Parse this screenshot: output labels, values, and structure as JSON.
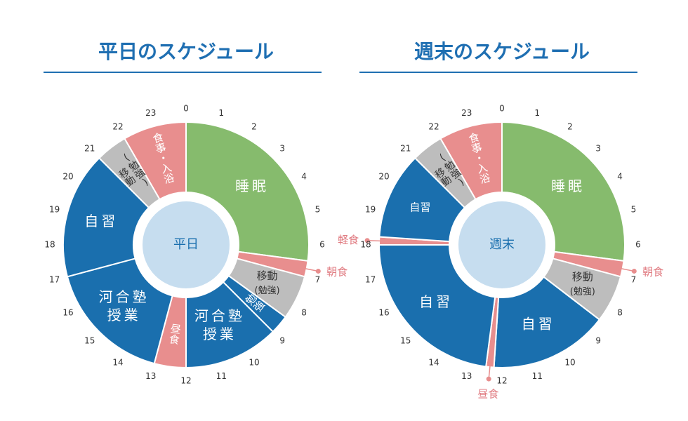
{
  "chart_data": [
    {
      "type": "clock",
      "title": "平日のスケジュール",
      "center_label": "平日",
      "ticks": [
        0,
        1,
        2,
        3,
        4,
        5,
        6,
        7,
        8,
        9,
        10,
        11,
        12,
        13,
        14,
        15,
        16,
        17,
        18,
        19,
        20,
        21,
        22,
        23
      ],
      "segments": [
        {
          "lines": [
            "睡眠"
          ],
          "start": 0,
          "end": 6.5,
          "color": "#86bb6d"
        },
        {
          "lines": [
            "朝食"
          ],
          "start": 6.5,
          "end": 7,
          "color": "#e88e8e",
          "callout": true
        },
        {
          "lines": [
            "移動",
            "(勉強)"
          ],
          "start": 7,
          "end": 8.4,
          "color": "#bdbdbd"
        },
        {
          "lines": [
            "勉強"
          ],
          "start": 8.4,
          "end": 9,
          "color": "#1a6fae",
          "vertical": true
        },
        {
          "lines": [
            "河合塾",
            "授業"
          ],
          "start": 9,
          "end": 12,
          "color": "#1a6fae"
        },
        {
          "lines": [
            "昼食"
          ],
          "start": 12,
          "end": 13,
          "color": "#e88e8e",
          "vertical": true
        },
        {
          "lines": [
            "河合塾",
            "授業"
          ],
          "start": 13,
          "end": 17,
          "color": "#1a6fae"
        },
        {
          "lines": [
            "自習"
          ],
          "start": 17,
          "end": 21,
          "color": "#1a6fae"
        },
        {
          "lines": [
            "移動",
            "(勉強)"
          ],
          "start": 21,
          "end": 22,
          "color": "#bdbdbd",
          "vertical": true
        },
        {
          "lines": [
            "食事・入浴"
          ],
          "start": 22,
          "end": 24,
          "color": "#e88e8e",
          "vertical": true
        }
      ]
    },
    {
      "type": "clock",
      "title": "週末のスケジュール",
      "center_label": "週末",
      "ticks": [
        0,
        1,
        2,
        3,
        4,
        5,
        6,
        7,
        8,
        9,
        10,
        11,
        12,
        13,
        14,
        15,
        16,
        17,
        18,
        19,
        20,
        21,
        22,
        23
      ],
      "segments": [
        {
          "lines": [
            "睡眠"
          ],
          "start": 0,
          "end": 6.5,
          "color": "#86bb6d"
        },
        {
          "lines": [
            "朝食"
          ],
          "start": 6.5,
          "end": 7,
          "color": "#e88e8e",
          "callout": true
        },
        {
          "lines": [
            "移動",
            "(勉強)"
          ],
          "start": 7,
          "end": 8.5,
          "color": "#bdbdbd"
        },
        {
          "lines": [
            "自習"
          ],
          "start": 8.5,
          "end": 12.25,
          "color": "#1a6fae"
        },
        {
          "lines": [
            "昼食"
          ],
          "start": 12.25,
          "end": 12.5,
          "color": "#e88e8e",
          "callout": true
        },
        {
          "lines": [
            "自習"
          ],
          "start": 12.5,
          "end": 18,
          "color": "#1a6fae"
        },
        {
          "lines": [
            "軽食"
          ],
          "start": 18,
          "end": 18.25,
          "color": "#e88e8e",
          "callout": true
        },
        {
          "lines": [
            "自習"
          ],
          "start": 18.25,
          "end": 21,
          "color": "#1a6fae"
        },
        {
          "lines": [
            "移動",
            "(勉強)"
          ],
          "start": 21,
          "end": 22,
          "color": "#bdbdbd",
          "vertical": true
        },
        {
          "lines": [
            "食事・入浴"
          ],
          "start": 22,
          "end": 24,
          "color": "#e88e8e",
          "vertical": true
        }
      ]
    }
  ]
}
